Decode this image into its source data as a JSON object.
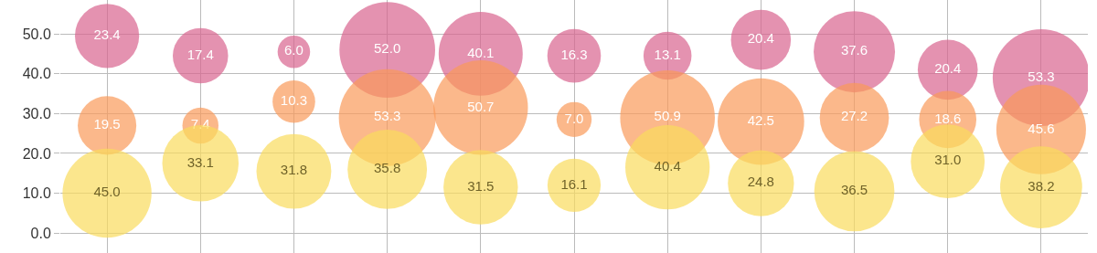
{
  "chart_data": {
    "type": "bubble",
    "categories": [
      null,
      null,
      null,
      null,
      null,
      null,
      null,
      null,
      null,
      null,
      null
    ],
    "series": [
      {
        "color": "#d9648e",
        "values": [
          49.5,
          44.5,
          45.5,
          46,
          45,
          44.5,
          44.5,
          48.5,
          45.5,
          41,
          39
        ],
        "sizes": [
          23.4,
          17.4,
          6.0,
          52.0,
          40.1,
          16.3,
          13.1,
          20.4,
          37.6,
          20.4,
          53.3
        ],
        "value_labels": [
          "23.4",
          "17.4",
          "6.0",
          "52.0",
          "40.1",
          "16.3",
          "13.1",
          "20.4",
          "37.6",
          "20.4",
          "53.3"
        ]
      },
      {
        "color": "#fa9a5a",
        "values": [
          27,
          27,
          33,
          29,
          31.5,
          28.5,
          29,
          28,
          29,
          28.5,
          26
        ],
        "sizes": [
          19.5,
          7.4,
          10.3,
          53.3,
          50.7,
          7.0,
          50.9,
          42.5,
          27.2,
          18.6,
          45.6
        ],
        "value_labels": [
          "19.5",
          "7.4",
          "10.3",
          "53.3",
          "50.7",
          "7.0",
          "50.9",
          "42.5",
          "27.2",
          "18.6",
          "45.6"
        ]
      },
      {
        "color": "#f9dc5c",
        "values": [
          10,
          17.5,
          15.5,
          16,
          11.5,
          12,
          16.5,
          12.5,
          10.5,
          18,
          11.5
        ],
        "sizes": [
          45.0,
          33.1,
          31.8,
          35.8,
          31.5,
          16.1,
          40.4,
          24.8,
          36.5,
          31.0,
          38.2
        ],
        "value_labels": [
          "45.0",
          "33.1",
          "31.8",
          "35.8",
          "31.5",
          "16.1",
          "40.4",
          "24.8",
          "36.5",
          "31.0",
          "38.2"
        ]
      }
    ],
    "ylim": [
      -5,
      58.5
    ],
    "yticks": [
      {
        "value": 0,
        "label": "0.0"
      },
      {
        "value": 10,
        "label": "10.0"
      },
      {
        "value": 20,
        "label": "20.0"
      },
      {
        "value": 30,
        "label": "30.0"
      },
      {
        "value": 40,
        "label": "40.0"
      },
      {
        "value": 50,
        "label": "50.0"
      }
    ],
    "grid": true,
    "tick_labels": "y"
  }
}
